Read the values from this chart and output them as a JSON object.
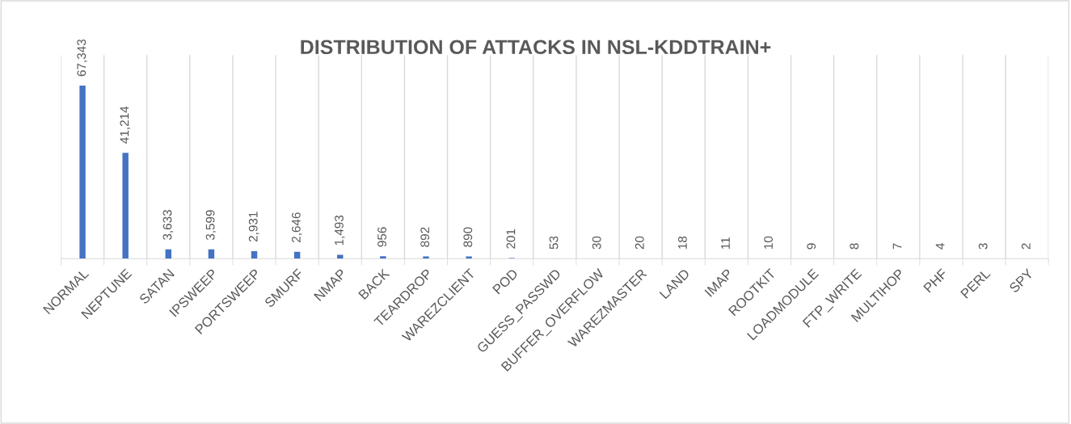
{
  "chart_data": {
    "type": "bar",
    "title": "DISTRIBUTION OF ATTACKS IN NSL-KDDTRAIN+",
    "categories": [
      "NORMAL",
      "NEPTUNE",
      "SATAN",
      "IPSWEEP",
      "PORTSWEEP",
      "SMURF",
      "NMAP",
      "BACK",
      "TEARDROP",
      "WAREZCLIENT",
      "POD",
      "GUESS_PASSWD",
      "BUFFER_OVERFLOW",
      "WAREZMASTER",
      "LAND",
      "IMAP",
      "ROOTKIT",
      "LOADMODULE",
      "FTP_WRITE",
      "MULTIHOP",
      "PHF",
      "PERL",
      "SPY"
    ],
    "values": [
      67343,
      41214,
      3633,
      3599,
      2931,
      2646,
      1493,
      956,
      892,
      890,
      201,
      53,
      30,
      20,
      18,
      11,
      10,
      9,
      8,
      7,
      4,
      3,
      2
    ],
    "value_labels": [
      "67,343",
      "41,214",
      "3,633",
      "3,599",
      "2,931",
      "2,646",
      "1,493",
      "956",
      "892",
      "890",
      "201",
      "53",
      "30",
      "20",
      "18",
      "11",
      "10",
      "9",
      "8",
      "7",
      "4",
      "3",
      "2"
    ],
    "color": "#4472c4",
    "grid": "x"
  }
}
